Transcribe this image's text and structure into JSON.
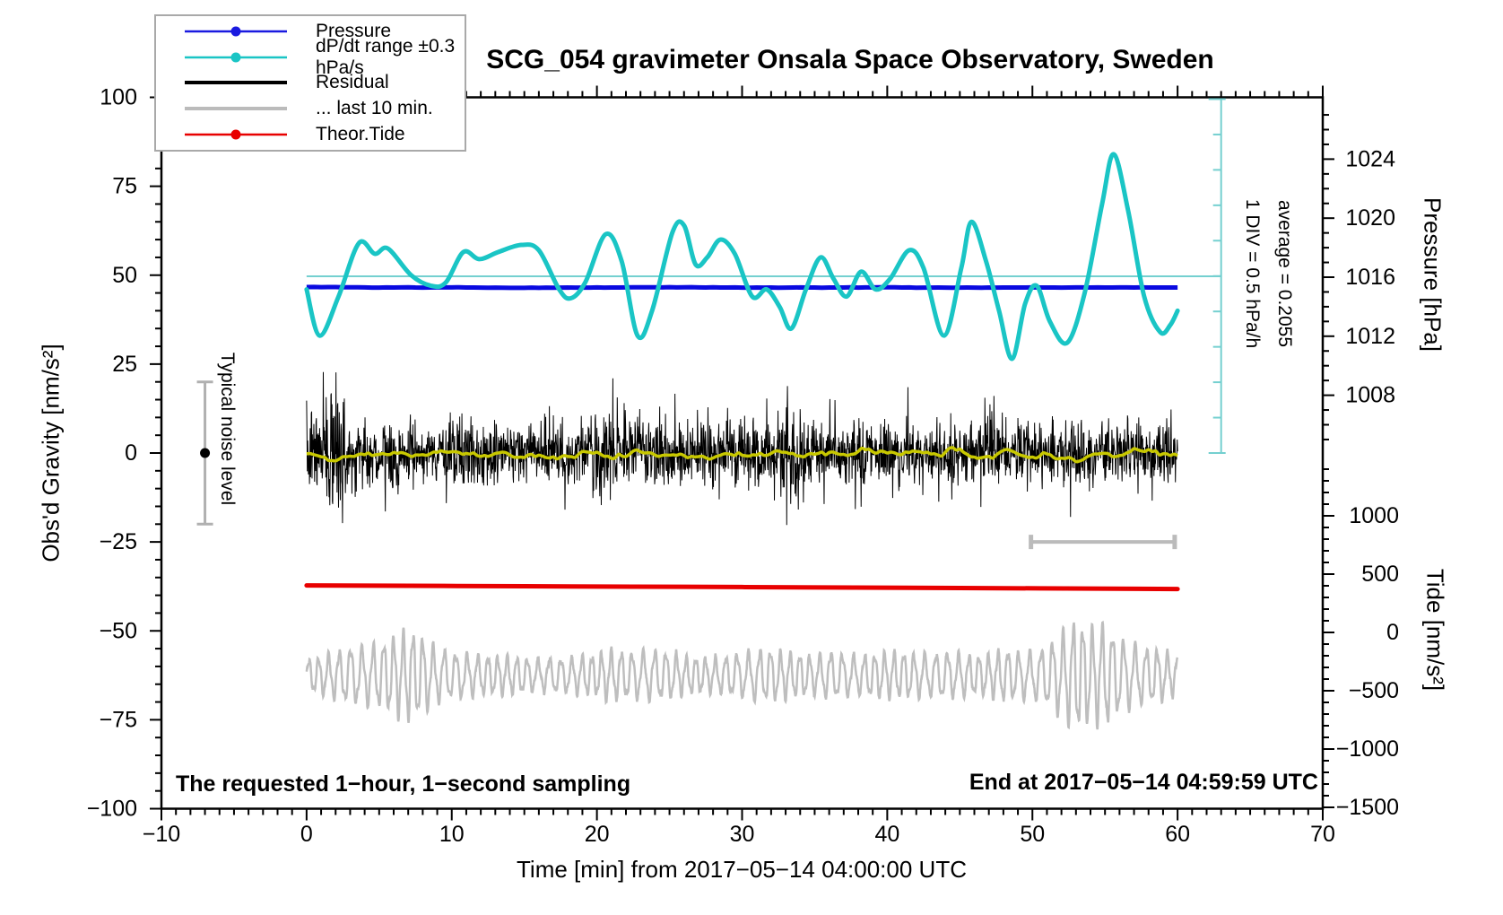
{
  "title": "SCG_054 gravimeter Onsala Space Observatory, Sweden",
  "annotations": {
    "bottom_left": "The requested 1−hour, 1−second sampling",
    "bottom_right": "End at 2017−05−14 04:59:59 UTC",
    "noise_label": "Typical noise level",
    "div_scale_label": "1 DIV = 0.5 hPa/h",
    "average_label": "average = 0.2055"
  },
  "legend": {
    "items": [
      {
        "label": "Pressure",
        "color": "#1a1ae0",
        "style": "thin-dot"
      },
      {
        "label": "dP/dt range ±0.3 hPa/s",
        "color": "#1ac5c5",
        "style": "thin-dot"
      },
      {
        "label": "Residual",
        "color": "#000000",
        "style": "thick"
      },
      {
        "label": "... last 10 min.",
        "color": "#bbbbbb",
        "style": "thick"
      },
      {
        "label": "Theor.Tide",
        "color": "#e80000",
        "style": "thin-dot"
      }
    ]
  },
  "chart_data": {
    "type": "line",
    "title": "SCG_054 gravimeter Onsala Space Observatory, Sweden",
    "x_axis": {
      "label": "Time [min] from 2017−05−14 04:00:00 UTC",
      "range": [
        -10,
        70
      ],
      "minor_step_min": 1,
      "ticks": [
        {
          "label": "−10",
          "value": -10
        },
        {
          "label": "0",
          "value": 0
        },
        {
          "label": "10",
          "value": 10
        },
        {
          "label": "20",
          "value": 20
        },
        {
          "label": "30",
          "value": 30
        },
        {
          "label": "40",
          "value": 40
        },
        {
          "label": "50",
          "value": 50
        },
        {
          "label": "60",
          "value": 60
        },
        {
          "label": "70",
          "value": 70
        }
      ]
    },
    "gravity_axis": {
      "label": "Obs'd Gravity [nm/s²]",
      "range": [
        -100,
        100
      ],
      "minor_step": 5,
      "ticks": [
        {
          "label": "100",
          "value": 100
        },
        {
          "label": "75",
          "value": 75
        },
        {
          "label": "50",
          "value": 50
        },
        {
          "label": "25",
          "value": 25
        },
        {
          "label": "0",
          "value": 0
        },
        {
          "label": "−25",
          "value": -25
        },
        {
          "label": "−50",
          "value": -50
        },
        {
          "label": "−75",
          "value": -75
        },
        {
          "label": "−100",
          "value": -100
        }
      ]
    },
    "pressure_axis": {
      "label": "Pressure [hPa]",
      "minor_step_hpa": 1,
      "ticks": [
        {
          "label": "1024",
          "value": 1024
        },
        {
          "label": "1020",
          "value": 1020
        },
        {
          "label": "1016",
          "value": 1016
        },
        {
          "label": "1012",
          "value": 1012
        },
        {
          "label": "1008",
          "value": 1008
        }
      ]
    },
    "tide_axis": {
      "label": "Tide [nm/s²]",
      "minor_step": 100,
      "ticks": [
        {
          "label": "1000",
          "value": 1000
        },
        {
          "label": "500",
          "value": 500
        },
        {
          "label": "0",
          "value": 0
        },
        {
          "label": "−500",
          "value": -500
        },
        {
          "label": "−1000",
          "value": -1000
        },
        {
          "label": "−1500",
          "value": -1500
        }
      ]
    },
    "series": [
      {
        "id": "pressure",
        "name": "Pressure",
        "axis": "pressure",
        "color": "#0a0ae0",
        "width": 5,
        "x_start_min": 0,
        "x_step_min": 5,
        "values_hpa": [
          1015.34,
          1015.3,
          1015.31,
          1015.28,
          1015.3,
          1015.32,
          1015.29,
          1015.3,
          1015.31,
          1015.29,
          1015.3,
          1015.31,
          1015.3
        ]
      },
      {
        "id": "dpdt",
        "name": "dP/dt range ±0.3 hPa/s",
        "axis": "gravity",
        "color": "#1ac5c5",
        "width": 5,
        "average_line_gravity": 49.7,
        "ruler": {
          "x_min": 63,
          "top_gravity": 99.5,
          "bottom_gravity": 0.0,
          "divisions": 10
        },
        "points_min_gravity": [
          [
            0,
            46
          ],
          [
            0.9,
            33
          ],
          [
            2.2,
            44
          ],
          [
            3.6,
            59
          ],
          [
            4.7,
            56
          ],
          [
            5.6,
            57.5
          ],
          [
            7.2,
            50
          ],
          [
            8.6,
            47
          ],
          [
            9.6,
            48
          ],
          [
            10.8,
            56.5
          ],
          [
            11.9,
            54.5
          ],
          [
            13.2,
            56.5
          ],
          [
            14.8,
            58.5
          ],
          [
            16,
            57
          ],
          [
            17.4,
            46
          ],
          [
            18.2,
            43.5
          ],
          [
            19.2,
            48
          ],
          [
            20.6,
            61.5
          ],
          [
            21.7,
            54
          ],
          [
            22.8,
            33
          ],
          [
            23.8,
            40
          ],
          [
            25.2,
            62
          ],
          [
            26,
            64
          ],
          [
            26.8,
            53
          ],
          [
            27.6,
            55
          ],
          [
            28.5,
            60
          ],
          [
            29.5,
            56
          ],
          [
            30.7,
            44
          ],
          [
            31.7,
            46
          ],
          [
            32.6,
            41
          ],
          [
            33.4,
            35
          ],
          [
            34.4,
            46
          ],
          [
            35.4,
            55
          ],
          [
            36.3,
            49
          ],
          [
            37.2,
            44
          ],
          [
            38.2,
            51
          ],
          [
            39.2,
            46
          ],
          [
            40.2,
            49
          ],
          [
            41.5,
            57
          ],
          [
            42.5,
            52
          ],
          [
            43.9,
            33
          ],
          [
            45.1,
            52
          ],
          [
            45.8,
            65
          ],
          [
            46.8,
            54
          ],
          [
            47.7,
            40
          ],
          [
            48.6,
            26.5
          ],
          [
            49.5,
            42
          ],
          [
            50.3,
            47
          ],
          [
            51.2,
            37
          ],
          [
            52.4,
            31
          ],
          [
            53.6,
            45
          ],
          [
            54.8,
            70
          ],
          [
            55.6,
            84
          ],
          [
            56.6,
            68
          ],
          [
            57.7,
            44
          ],
          [
            58.8,
            34
          ],
          [
            59.5,
            36
          ],
          [
            60,
            40
          ]
        ]
      },
      {
        "id": "residual",
        "name": "Residual",
        "axis": "gravity",
        "color": "#000000",
        "width": 1,
        "center_gravity": 0,
        "noise_std_gravity": 4.1,
        "seed": 7,
        "envelope": [
          [
            0,
            1.3
          ],
          [
            1.5,
            2.0
          ],
          [
            2.3,
            2.7
          ],
          [
            3,
            1.5
          ],
          [
            4,
            1.3
          ],
          [
            5,
            1.1
          ],
          [
            6,
            1.0
          ],
          [
            7,
            1.3
          ],
          [
            8,
            1.0
          ],
          [
            9,
            0.9
          ],
          [
            10,
            1.1
          ],
          [
            11,
            1.5
          ],
          [
            12,
            1.2
          ],
          [
            13,
            1.0
          ],
          [
            14,
            0.9
          ],
          [
            15,
            1.0
          ],
          [
            16,
            0.9
          ],
          [
            17,
            1.0
          ],
          [
            18,
            1.1
          ],
          [
            19,
            1.0
          ],
          [
            20,
            1.3
          ],
          [
            21,
            1.6
          ],
          [
            22,
            1.2
          ],
          [
            23,
            1.0
          ],
          [
            24,
            1.1
          ],
          [
            25,
            1.3
          ],
          [
            26,
            1.1
          ],
          [
            27,
            0.9
          ],
          [
            28,
            1.2
          ],
          [
            29,
            1.0
          ],
          [
            30,
            1.1
          ],
          [
            31,
            1.3
          ],
          [
            32,
            1.1
          ],
          [
            33,
            1.8
          ],
          [
            33.6,
            2.4
          ],
          [
            34.3,
            1.4
          ],
          [
            35,
            1.0
          ],
          [
            36,
            1.1
          ],
          [
            37,
            1.0
          ],
          [
            38,
            1.2
          ],
          [
            39,
            1.0
          ],
          [
            40,
            1.1
          ],
          [
            41,
            1.0
          ],
          [
            42,
            1.2
          ],
          [
            43,
            1.0
          ],
          [
            44,
            1.2
          ],
          [
            45,
            1.0
          ],
          [
            46,
            1.1
          ],
          [
            47,
            1.3
          ],
          [
            48,
            1.1
          ],
          [
            49,
            1.0
          ],
          [
            50,
            1.1
          ],
          [
            51,
            1.0
          ],
          [
            52,
            1.1
          ],
          [
            53,
            1.2
          ],
          [
            54,
            1.0
          ],
          [
            55,
            1.1
          ],
          [
            56,
            1.0
          ],
          [
            57,
            1.1
          ],
          [
            58,
            1.0
          ],
          [
            59,
            1.1
          ],
          [
            60,
            1.0
          ]
        ]
      },
      {
        "id": "residual_smooth",
        "name": "Residual lowpass",
        "axis": "gravity",
        "color": "#c8c800",
        "width": 3.5,
        "center_gravity": -0.3,
        "amplitude_gravity": 1.1,
        "seed": 11
      },
      {
        "id": "last10",
        "name": "... last 10 min.",
        "axis": "gravity",
        "color": "#bebebe",
        "width": 2.5,
        "center_gravity": -62.5,
        "period_min": 0.72,
        "seed": 3,
        "envelope_gravity": [
          [
            0,
            4
          ],
          [
            1,
            5
          ],
          [
            2,
            6
          ],
          [
            3,
            7
          ],
          [
            4,
            7.5
          ],
          [
            5,
            8
          ],
          [
            6,
            10
          ],
          [
            7,
            11.5
          ],
          [
            8,
            10
          ],
          [
            9,
            7
          ],
          [
            10,
            6
          ],
          [
            11,
            5.5
          ],
          [
            12,
            5
          ],
          [
            13,
            5
          ],
          [
            14,
            5
          ],
          [
            15,
            4.5
          ],
          [
            16,
            4
          ],
          [
            17,
            4.5
          ],
          [
            18,
            4.5
          ],
          [
            19,
            5
          ],
          [
            20,
            5.5
          ],
          [
            21,
            6.5
          ],
          [
            22,
            6
          ],
          [
            23,
            6
          ],
          [
            24,
            6.5
          ],
          [
            25,
            6
          ],
          [
            26,
            5
          ],
          [
            27,
            4.5
          ],
          [
            28,
            4.5
          ],
          [
            29,
            5
          ],
          [
            30,
            5.5
          ],
          [
            31,
            6.5
          ],
          [
            32,
            6.5
          ],
          [
            33,
            6
          ],
          [
            34,
            5.5
          ],
          [
            35,
            5
          ],
          [
            36,
            6
          ],
          [
            37,
            5.5
          ],
          [
            38,
            5
          ],
          [
            39,
            5.5
          ],
          [
            40,
            6
          ],
          [
            41,
            6
          ],
          [
            42,
            5.5
          ],
          [
            43,
            5.5
          ],
          [
            44,
            6
          ],
          [
            45,
            5.5
          ],
          [
            46,
            5
          ],
          [
            47,
            5.5
          ],
          [
            48,
            6.5
          ],
          [
            49,
            6
          ],
          [
            50,
            6
          ],
          [
            51,
            7.5
          ],
          [
            52,
            11
          ],
          [
            53,
            14
          ],
          [
            54,
            12
          ],
          [
            55,
            13
          ],
          [
            56,
            9.5
          ],
          [
            57,
            8
          ],
          [
            58,
            7
          ],
          [
            59,
            6.5
          ],
          [
            60,
            5
          ]
        ]
      },
      {
        "id": "tide",
        "name": "Theor.Tide",
        "axis": "tide",
        "color": "#e80000",
        "width": 5,
        "x_start_min": 0,
        "x_step_min": 15,
        "values_tide": [
          403,
          396,
          389,
          381,
          372
        ]
      }
    ],
    "markers": {
      "noise_errorbar": {
        "x_min": -7,
        "gravity_center": 0,
        "gravity_halfspan": 20
      },
      "duration_bar": {
        "x_from_min": 49.9,
        "x_to_min": 59.8,
        "gravity": -25
      }
    }
  }
}
